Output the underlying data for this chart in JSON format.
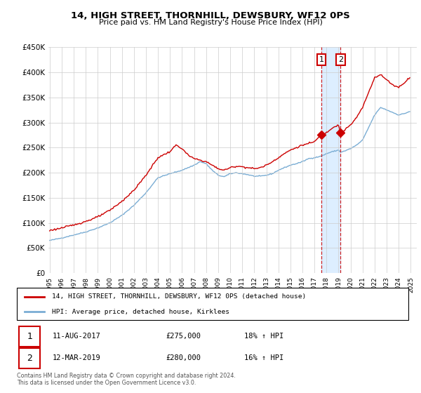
{
  "title": "14, HIGH STREET, THORNHILL, DEWSBURY, WF12 0PS",
  "subtitle": "Price paid vs. HM Land Registry's House Price Index (HPI)",
  "legend_line1": "14, HIGH STREET, THORNHILL, DEWSBURY, WF12 0PS (detached house)",
  "legend_line2": "HPI: Average price, detached house, Kirklees",
  "footnote": "Contains HM Land Registry data © Crown copyright and database right 2024.\nThis data is licensed under the Open Government Licence v3.0.",
  "annotation1_date": "11-AUG-2017",
  "annotation1_price": "£275,000",
  "annotation1_hpi": "18% ↑ HPI",
  "annotation1_year": 2017.583,
  "annotation2_date": "12-MAR-2019",
  "annotation2_price": "£280,000",
  "annotation2_hpi": "16% ↑ HPI",
  "annotation2_year": 2019.167,
  "red_color": "#cc0000",
  "blue_color": "#7aadd4",
  "shade_color": "#ddeeff",
  "annotation_color": "#cc0000",
  "grid_color": "#cccccc",
  "ylim": [
    0,
    450000
  ],
  "yticks": [
    0,
    50000,
    100000,
    150000,
    200000,
    250000,
    300000,
    350000,
    400000,
    450000
  ],
  "ytick_labels": [
    "£0",
    "£50K",
    "£100K",
    "£150K",
    "£200K",
    "£250K",
    "£300K",
    "£350K",
    "£400K",
    "£450K"
  ],
  "xlim_start": 1994.9,
  "xlim_end": 2025.5
}
